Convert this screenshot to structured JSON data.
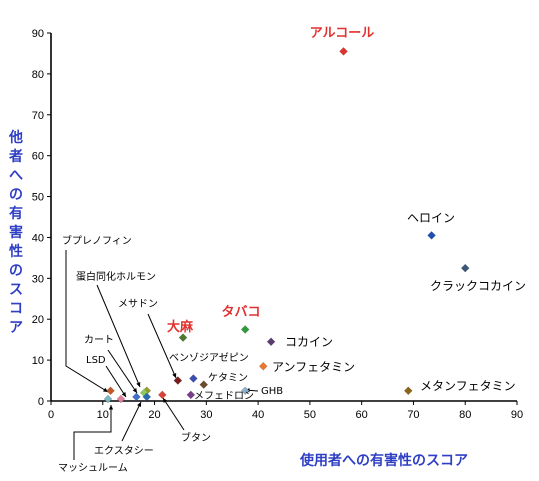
{
  "chart_data": {
    "type": "scatter",
    "xlabel": "使用者への有害性のスコア",
    "ylabel": "他者への有害性のスコア",
    "xlim": [
      0,
      90
    ],
    "ylim": [
      0,
      90
    ],
    "xticks": [
      0,
      10,
      20,
      30,
      40,
      50,
      60,
      70,
      80,
      90
    ],
    "yticks": [
      0,
      10,
      20,
      30,
      40,
      50,
      60,
      70,
      80,
      90
    ],
    "grid": false,
    "points": [
      {
        "label": "アルコール",
        "x": 56.5,
        "y": 85.5,
        "color": "#e0312f",
        "label_color": "#e0312f"
      },
      {
        "label": "ヘロイン",
        "x": 73.5,
        "y": 40.5,
        "color": "#1f4fb5",
        "label_color": "#000000"
      },
      {
        "label": "クラックコカイン",
        "x": 80,
        "y": 32.5,
        "color": "#3b5877",
        "label_color": "#000000"
      },
      {
        "label": "メタンフェタミン",
        "x": 69,
        "y": 2.5,
        "color": "#8c6418",
        "label_color": "#000000"
      },
      {
        "label": "コカイン",
        "x": 42.5,
        "y": 14.5,
        "color": "#5b3d73",
        "label_color": "#000000"
      },
      {
        "label": "タバコ",
        "x": 37.5,
        "y": 17.5,
        "color": "#2e9a3b",
        "label_color": "#e0312f"
      },
      {
        "label": "アンフェタミン",
        "x": 41,
        "y": 8.5,
        "color": "#e8782c",
        "label_color": "#000000"
      },
      {
        "label": "大麻",
        "x": 25.5,
        "y": 15.5,
        "color": "#4a7a2e",
        "label_color": "#e0312f"
      },
      {
        "label": "ベンゾジアゼピン",
        "x": 24.5,
        "y": 5,
        "color": "#7a1c1c",
        "label_color": "#000000"
      },
      {
        "label": "ケタミン",
        "x": 29.5,
        "y": 4,
        "color": "#6a4c2a",
        "label_color": "#000000"
      },
      {
        "label": "GHB",
        "x": 37.5,
        "y": 2.5,
        "color": "#8fb0cc",
        "label_color": "#000000"
      },
      {
        "label": "メフェドロン",
        "x": 27,
        "y": 1.5,
        "color": "#7a3c8a",
        "label_color": "#000000"
      },
      {
        "label": "ブタン",
        "x": 21.5,
        "y": 1.5,
        "color": "#d9443a",
        "label_color": "#000000"
      },
      {
        "label": "メサドン",
        "x": 18.5,
        "y": 2.5,
        "color": "#9a9a2a",
        "label_color": "#000000"
      },
      {
        "label": "蛋白同化ホルモン",
        "x": 18,
        "y": 2,
        "color": "#8ccb5a",
        "label_color": "#000000"
      },
      {
        "label": "カート",
        "x": 16.5,
        "y": 1,
        "color": "#4070c8",
        "label_color": "#000000"
      },
      {
        "label": "ブプレノフィン",
        "x": 11.5,
        "y": 2.5,
        "color": "#c05a2a",
        "label_color": "#000000"
      },
      {
        "label": "LSD",
        "x": 13.5,
        "y": 0.5,
        "color": "#e080a0",
        "label_color": "#000000"
      },
      {
        "label": "エクスタシー",
        "x": 18.5,
        "y": 1,
        "color": "#2a6ab0",
        "label_color": "#000000"
      },
      {
        "label": "マッシュルーム",
        "x": 11,
        "y": 0.5,
        "color": "#7ab8c0",
        "label_color": "#000000"
      },
      {
        "label": "",
        "x": 27.5,
        "y": 5.5,
        "color": "#3a4fb0",
        "label_color": "#000000"
      }
    ]
  }
}
